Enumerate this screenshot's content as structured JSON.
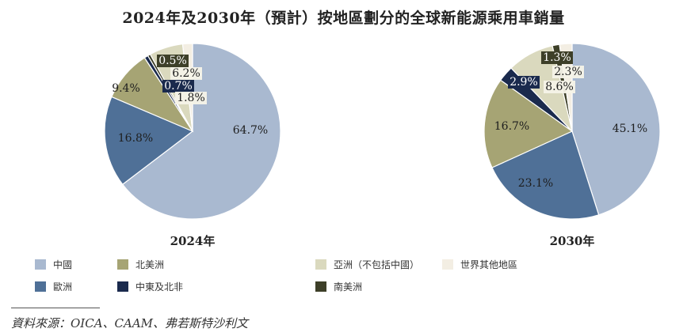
{
  "title": "2024年及2030年（預計）按地區劃分的全球新能源乘用車銷量",
  "legend": [
    {
      "label": "中國",
      "color": "#a9b9d0"
    },
    {
      "label": "北美洲",
      "color": "#a6a474"
    },
    {
      "label": "亞洲（不包括中國）",
      "color": "#dad9be"
    },
    {
      "label": "世界其他地區",
      "color": "#f3eee3"
    },
    {
      "label": "歐洲",
      "color": "#4f7097"
    },
    {
      "label": "中東及北非",
      "color": "#1a2a4d"
    },
    {
      "label": "南美洲",
      "color": "#3d3f28"
    }
  ],
  "source": "資料來源：OICA、CAAM、弗若斯特沙利文",
  "chart_data": [
    {
      "type": "pie",
      "xlabel": "2024年",
      "slices": [
        {
          "name": "中國",
          "value": 64.7,
          "label": "64.7%",
          "color": "#a9b9d0"
        },
        {
          "name": "歐洲",
          "value": 16.8,
          "label": "16.8%",
          "color": "#4f7097"
        },
        {
          "name": "北美洲",
          "value": 9.4,
          "label": "9.4%",
          "color": "#a6a474"
        },
        {
          "name": "中東及北非",
          "value": 0.7,
          "label": "0.7%",
          "color": "#1a2a4d"
        },
        {
          "name": "南美洲",
          "value": 0.5,
          "label": "0.5%",
          "color": "#3d3f28"
        },
        {
          "name": "亞洲（不包括中國）",
          "value": 6.2,
          "label": "6.2%",
          "color": "#dad9be"
        },
        {
          "name": "世界其他地區",
          "value": 1.8,
          "label": "1.8%",
          "color": "#f3eee3"
        }
      ]
    },
    {
      "type": "pie",
      "xlabel": "2030年",
      "slices": [
        {
          "name": "中國",
          "value": 45.1,
          "label": "45.1%",
          "color": "#a9b9d0"
        },
        {
          "name": "歐洲",
          "value": 23.1,
          "label": "23.1%",
          "color": "#4f7097"
        },
        {
          "name": "北美洲",
          "value": 16.7,
          "label": "16.7%",
          "color": "#a6a474"
        },
        {
          "name": "中東及北非",
          "value": 2.9,
          "label": "2.9%",
          "color": "#1a2a4d"
        },
        {
          "name": "亞洲（不包括中國）",
          "value": 8.6,
          "label": "8.6%",
          "color": "#dad9be"
        },
        {
          "name": "南美洲",
          "value": 1.3,
          "label": "1.3%",
          "color": "#3d3f28"
        },
        {
          "name": "世界其他地區",
          "value": 2.3,
          "label": "2.3%",
          "color": "#f3eee3"
        }
      ]
    }
  ]
}
